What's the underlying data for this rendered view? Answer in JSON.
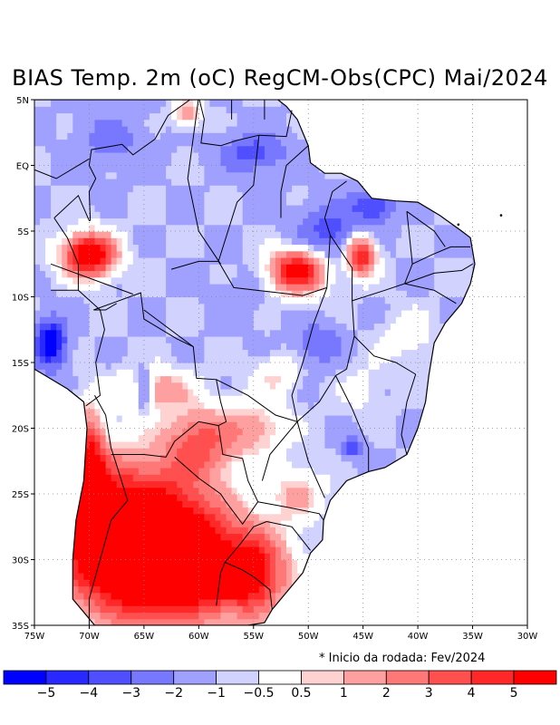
{
  "title": "BIAS Temp. 2m (oC) RegCM-Obs(CPC) Mai/2024",
  "note": "* Inicio da rodada: Fev/2024",
  "map": {
    "lon_range": [
      -75,
      -30
    ],
    "lat_range": [
      -35,
      5
    ],
    "x_ticks": [
      {
        "value": -75,
        "label": "75W"
      },
      {
        "value": -70,
        "label": "70W"
      },
      {
        "value": -65,
        "label": "65W"
      },
      {
        "value": -60,
        "label": "60W"
      },
      {
        "value": -55,
        "label": "55W"
      },
      {
        "value": -50,
        "label": "50W"
      },
      {
        "value": -45,
        "label": "45W"
      },
      {
        "value": -40,
        "label": "40W"
      },
      {
        "value": -35,
        "label": "35W"
      },
      {
        "value": -30,
        "label": "30W"
      }
    ],
    "y_ticks": [
      {
        "value": 5,
        "label": "5N"
      },
      {
        "value": 0,
        "label": "EQ"
      },
      {
        "value": -5,
        "label": "5S"
      },
      {
        "value": -10,
        "label": "10S"
      },
      {
        "value": -15,
        "label": "15S"
      },
      {
        "value": -20,
        "label": "20S"
      },
      {
        "value": -25,
        "label": "25S"
      },
      {
        "value": -30,
        "label": "30S"
      },
      {
        "value": -35,
        "label": "35S"
      }
    ],
    "coast_coords": [
      [
        -69.5,
        -35
      ],
      [
        -71.5,
        -33
      ],
      [
        -71.5,
        -30
      ],
      [
        -71.2,
        -27
      ],
      [
        -70.5,
        -24
      ],
      [
        -70.2,
        -20
      ],
      [
        -70.5,
        -18
      ],
      [
        -72,
        -17
      ],
      [
        -74,
        -16
      ],
      [
        -75,
        -15.5
      ],
      [
        -75,
        -12
      ],
      [
        -76,
        -10
      ],
      [
        -77,
        -8
      ],
      [
        -79,
        -6
      ],
      [
        -80.5,
        -4
      ],
      [
        -80,
        -2.5
      ],
      [
        -80.5,
        0
      ],
      [
        -79.5,
        1.5
      ],
      [
        -78.5,
        2.5
      ],
      [
        -77.5,
        4
      ],
      [
        -77,
        5
      ],
      [
        -60,
        5
      ],
      [
        -59,
        6
      ],
      [
        -57,
        6
      ],
      [
        -54,
        5.8
      ],
      [
        -52,
        4.5
      ],
      [
        -51,
        3.5
      ],
      [
        -50,
        1.5
      ],
      [
        -49.8,
        0.2
      ],
      [
        -48.5,
        -0.6
      ],
      [
        -47,
        -0.6
      ],
      [
        -45.5,
        -1.2
      ],
      [
        -44.2,
        -2.5
      ],
      [
        -42,
        -2.7
      ],
      [
        -40,
        -2.8
      ],
      [
        -38,
        -3.8
      ],
      [
        -36,
        -5
      ],
      [
        -35.2,
        -5.5
      ],
      [
        -34.8,
        -7.5
      ],
      [
        -35.2,
        -9
      ],
      [
        -36,
        -10.5
      ],
      [
        -37.5,
        -12
      ],
      [
        -38.5,
        -13.5
      ],
      [
        -39,
        -16
      ],
      [
        -39.3,
        -18
      ],
      [
        -40,
        -20
      ],
      [
        -41,
        -22
      ],
      [
        -43,
        -23
      ],
      [
        -44.5,
        -23.3
      ],
      [
        -46.5,
        -24
      ],
      [
        -48,
        -25.5
      ],
      [
        -48.6,
        -27
      ],
      [
        -48.7,
        -28.5
      ],
      [
        -49.8,
        -29.5
      ],
      [
        -50.5,
        -31
      ],
      [
        -52,
        -32.5
      ],
      [
        -53.3,
        -33.8
      ],
      [
        -54,
        -34.8
      ],
      [
        -55.5,
        -35
      ],
      [
        -69.5,
        -35
      ]
    ],
    "borders": [
      [
        [
          -73.2,
          -4
        ],
        [
          -72,
          -5.5
        ],
        [
          -71,
          -7.5
        ],
        [
          -71,
          -9.5
        ],
        [
          -69,
          -11
        ],
        [
          -68.6,
          -12.5
        ],
        [
          -69.4,
          -15
        ],
        [
          -69,
          -17.5
        ],
        [
          -70.3,
          -18.3
        ]
      ],
      [
        [
          -69.5,
          -17.5
        ],
        [
          -68.5,
          -19
        ],
        [
          -68,
          -21.5
        ],
        [
          -67.5,
          -22.8
        ],
        [
          -66.5,
          -25.5
        ],
        [
          -68,
          -27
        ],
        [
          -69,
          -30
        ],
        [
          -70,
          -33
        ],
        [
          -70,
          -35
        ]
      ],
      [
        [
          -68,
          -22
        ],
        [
          -65,
          -22
        ],
        [
          -63,
          -22.2
        ],
        [
          -62.2,
          -21
        ],
        [
          -60,
          -19.5
        ],
        [
          -58.2,
          -19.8
        ]
      ],
      [
        [
          -62.2,
          -22.2
        ],
        [
          -60,
          -23.8
        ],
        [
          -58,
          -25
        ],
        [
          -57.6,
          -25.5
        ],
        [
          -56,
          -27.3
        ],
        [
          -54.6,
          -25.6
        ]
      ],
      [
        [
          -58.2,
          -19.8
        ],
        [
          -57.8,
          -22
        ],
        [
          -56,
          -22.3
        ],
        [
          -55.5,
          -24
        ],
        [
          -54.6,
          -25.6
        ]
      ],
      [
        [
          -57.6,
          -30.2
        ],
        [
          -56,
          -30.8
        ],
        [
          -55,
          -31.3
        ],
        [
          -53.5,
          -32.3
        ],
        [
          -53.3,
          -33.8
        ]
      ],
      [
        [
          -58.4,
          -33.5
        ],
        [
          -58,
          -31
        ],
        [
          -57.6,
          -30.2
        ],
        [
          -56.2,
          -28.8
        ],
        [
          -55,
          -27.5
        ],
        [
          -53.8,
          -27.1
        ]
      ],
      [
        [
          -69.6,
          -11
        ],
        [
          -65.3,
          -9.7
        ],
        [
          -65,
          -11.7
        ],
        [
          -62,
          -13.2
        ],
        [
          -60.5,
          -13.8
        ],
        [
          -60.2,
          -16.2
        ],
        [
          -58.4,
          -16.3
        ],
        [
          -58,
          -18
        ],
        [
          -57.5,
          -19.5
        ],
        [
          -58.2,
          -19.8
        ]
      ],
      [
        [
          -69.9,
          -4.2
        ],
        [
          -70,
          -2
        ],
        [
          -69.4,
          -1
        ],
        [
          -70,
          0
        ],
        [
          -69.8,
          1.2
        ],
        [
          -67,
          1.6
        ],
        [
          -66,
          0.8
        ],
        [
          -64,
          2
        ],
        [
          -62.8,
          3.8
        ],
        [
          -60.8,
          5
        ],
        [
          -60,
          5.2
        ]
      ],
      [
        [
          -60,
          5.2
        ],
        [
          -59.5,
          3.5
        ],
        [
          -59.8,
          1.7
        ],
        [
          -58,
          1.5
        ],
        [
          -56.5,
          1.9
        ],
        [
          -54.5,
          2.3
        ],
        [
          -52,
          2.2
        ],
        [
          -51.5,
          4.2
        ]
      ],
      [
        [
          -57,
          6
        ],
        [
          -57,
          3.5
        ]
      ],
      [
        [
          -54,
          5.8
        ],
        [
          -54,
          3.5
        ]
      ],
      [
        [
          -73.2,
          -4
        ],
        [
          -71,
          -2.3
        ],
        [
          -70,
          -4.2
        ],
        [
          -69.9,
          -4.2
        ]
      ],
      [
        [
          -78,
          -0.5
        ],
        [
          -75.5,
          -0.1
        ],
        [
          -75,
          -0.9
        ],
        [
          -77,
          -2.5
        ]
      ],
      [
        [
          -78.3,
          1.4
        ],
        [
          -76,
          0
        ],
        [
          -73,
          -1
        ],
        [
          -70,
          0.5
        ]
      ],
      [
        [
          -73.5,
          -9.5
        ],
        [
          -71,
          -9.5
        ]
      ],
      [
        [
          -69.6,
          -11
        ],
        [
          -68.5,
          -11
        ],
        [
          -67.5,
          -10.5
        ]
      ],
      [
        [
          -65,
          -11
        ],
        [
          -60.5,
          -13.8
        ]
      ],
      [
        [
          -58.2,
          -7.3
        ],
        [
          -56.8,
          -9.3
        ],
        [
          -50.5,
          -9.9
        ],
        [
          -48.3,
          -9.3
        ]
      ],
      [
        [
          -73.5,
          -7.5
        ],
        [
          -66,
          -9.8
        ]
      ],
      [
        [
          -62.5,
          -7.9
        ],
        [
          -60,
          -7.3
        ],
        [
          -58.2,
          -7.3
        ]
      ],
      [
        [
          -60,
          5.2
        ],
        [
          -61,
          -1
        ],
        [
          -60,
          -5
        ],
        [
          -58,
          -7.5
        ]
      ],
      [
        [
          -54.5,
          2.3
        ],
        [
          -55,
          -1.5
        ],
        [
          -56.5,
          -2.8
        ],
        [
          -58.2,
          -7.3
        ]
      ],
      [
        [
          -50,
          1.5
        ],
        [
          -52,
          0
        ],
        [
          -52.5,
          -2
        ],
        [
          -52.5,
          -4
        ]
      ],
      [
        [
          -48.3,
          -9.3
        ],
        [
          -49.5,
          -12
        ],
        [
          -50.5,
          -15
        ],
        [
          -51.5,
          -17.5
        ],
        [
          -51,
          -19.5
        ]
      ],
      [
        [
          -48.3,
          -9.3
        ],
        [
          -48,
          -5.3
        ],
        [
          -48.5,
          -4
        ],
        [
          -47.8,
          -2
        ],
        [
          -46.5,
          -1.2
        ]
      ],
      [
        [
          -48,
          -5.3
        ],
        [
          -46,
          -7.8
        ],
        [
          -46,
          -10.3
        ],
        [
          -45.8,
          -13
        ],
        [
          -46.5,
          -15.5
        ]
      ],
      [
        [
          -46,
          -10.3
        ],
        [
          -43,
          -9.5
        ],
        [
          -41.2,
          -9
        ],
        [
          -40.5,
          -7.5
        ],
        [
          -41,
          -3.5
        ]
      ],
      [
        [
          -45.8,
          -13
        ],
        [
          -44,
          -14.5
        ],
        [
          -42,
          -15
        ],
        [
          -40.2,
          -15.9
        ]
      ],
      [
        [
          -41,
          -3.5
        ],
        [
          -38.5,
          -5
        ],
        [
          -37.5,
          -6.2
        ]
      ],
      [
        [
          -40.5,
          -7.5
        ],
        [
          -38.7,
          -6.8
        ],
        [
          -37,
          -6.2
        ],
        [
          -35.2,
          -6.2
        ]
      ],
      [
        [
          -41.2,
          -9
        ],
        [
          -38.5,
          -8.2
        ],
        [
          -36,
          -8
        ],
        [
          -35,
          -7.5
        ]
      ],
      [
        [
          -41.2,
          -9
        ],
        [
          -38.5,
          -9.5
        ],
        [
          -36.5,
          -10.5
        ]
      ],
      [
        [
          -51,
          -19.5
        ],
        [
          -53,
          -19
        ],
        [
          -55.5,
          -17.5
        ],
        [
          -58.4,
          -16.3
        ]
      ],
      [
        [
          -51,
          -19.5
        ],
        [
          -53.5,
          -22
        ],
        [
          -54.2,
          -24
        ]
      ],
      [
        [
          -51,
          -19.5
        ],
        [
          -50,
          -22.5
        ],
        [
          -48.5,
          -25.3
        ]
      ],
      [
        [
          -46.5,
          -15.5
        ],
        [
          -47.5,
          -16
        ],
        [
          -49,
          -18
        ],
        [
          -51,
          -19.5
        ]
      ],
      [
        [
          -47.5,
          -16
        ],
        [
          -46,
          -18.5
        ],
        [
          -44.5,
          -21.5
        ],
        [
          -44.5,
          -23.3
        ]
      ],
      [
        [
          -40.2,
          -15.9
        ],
        [
          -41,
          -18
        ],
        [
          -41.5,
          -20.5
        ],
        [
          -41,
          -22
        ]
      ],
      [
        [
          -54.6,
          -25.6
        ],
        [
          -52,
          -26
        ],
        [
          -49,
          -26.5
        ],
        [
          -48.6,
          -27
        ]
      ],
      [
        [
          -53.8,
          -27.1
        ],
        [
          -51.5,
          -27.5
        ],
        [
          -49.8,
          -29.3
        ]
      ]
    ],
    "islands": [
      [
        -36.3,
        -4.5
      ],
      [
        -32.4,
        -3.8
      ]
    ]
  },
  "colorbar": {
    "colors": [
      "#0000ff",
      "#2828ff",
      "#4f4fff",
      "#7878ff",
      "#a0a0ff",
      "#d2d2ff",
      "#ffffff",
      "#ffd2d2",
      "#ffa0a0",
      "#ff7878",
      "#ff4f4f",
      "#ff2828",
      "#ff0000"
    ],
    "labels": [
      "−5",
      "−4",
      "−3",
      "−2",
      "−1",
      "−0.5",
      "0.5",
      "1",
      "2",
      "3",
      "4",
      "5"
    ]
  },
  "field": {
    "background": -1.0,
    "blobs": [
      {
        "lon": -66,
        "lat": -28,
        "sx": 7,
        "sy": 5,
        "v": 10
      },
      {
        "lon": -62,
        "lat": -31,
        "sx": 7,
        "sy": 4,
        "v": 6
      },
      {
        "lon": -70,
        "lat": -23,
        "sx": 1.5,
        "sy": 4,
        "v": 6
      },
      {
        "lon": -55,
        "lat": -31,
        "sx": 3,
        "sy": 3,
        "v": 5
      },
      {
        "lon": -60,
        "lat": -21,
        "sx": 3,
        "sy": 2.5,
        "v": 4
      },
      {
        "lon": -64,
        "lat": -17,
        "sx": 3,
        "sy": 1.5,
        "v": 3
      },
      {
        "lon": -55,
        "lat": -20,
        "sx": 3,
        "sy": 2,
        "v": 2.5
      },
      {
        "lon": -51,
        "lat": -25,
        "sx": 2.5,
        "sy": 2,
        "v": 2
      },
      {
        "lon": -53,
        "lat": -16,
        "sx": 2,
        "sy": 1.5,
        "v": 1.5
      },
      {
        "lon": -70,
        "lat": -6.8,
        "sx": 2.3,
        "sy": 1.6,
        "v": 8
      },
      {
        "lon": -51,
        "lat": -8,
        "sx": 2.4,
        "sy": 1.6,
        "v": 7
      },
      {
        "lon": -45.2,
        "lat": -6.8,
        "sx": 1.3,
        "sy": 1.5,
        "v": 6.5
      },
      {
        "lon": -61,
        "lat": 4,
        "sx": 1.2,
        "sy": 1,
        "v": 3
      },
      {
        "lon": -49,
        "lat": -13.5,
        "sx": 2,
        "sy": 1.5,
        "v": -2
      },
      {
        "lon": -48,
        "lat": -5,
        "sx": 3,
        "sy": 2,
        "v": -2.5
      },
      {
        "lon": -44,
        "lat": -3,
        "sx": 2,
        "sy": 1.2,
        "v": -3
      },
      {
        "lon": -55,
        "lat": 1,
        "sx": 3,
        "sy": 1.5,
        "v": -2.5
      },
      {
        "lon": -68,
        "lat": 2,
        "sx": 3,
        "sy": 2,
        "v": -1.5
      },
      {
        "lon": -73.5,
        "lat": -13.5,
        "sx": 1.4,
        "sy": 1.8,
        "v": -5
      },
      {
        "lon": -65,
        "lat": -17,
        "sx": 0.8,
        "sy": 1.5,
        "v": -3.5
      },
      {
        "lon": -46,
        "lat": -21.5,
        "sx": 1,
        "sy": 0.8,
        "v": -2.5
      },
      {
        "lon": -56,
        "lat": -10,
        "sx": 3,
        "sy": 2,
        "v": -0.5
      },
      {
        "lon": -41,
        "lat": -13,
        "sx": 2.5,
        "sy": 2,
        "v": 1
      },
      {
        "lon": -45,
        "lat": -17,
        "sx": 2,
        "sy": 2,
        "v": 0.8
      }
    ]
  }
}
